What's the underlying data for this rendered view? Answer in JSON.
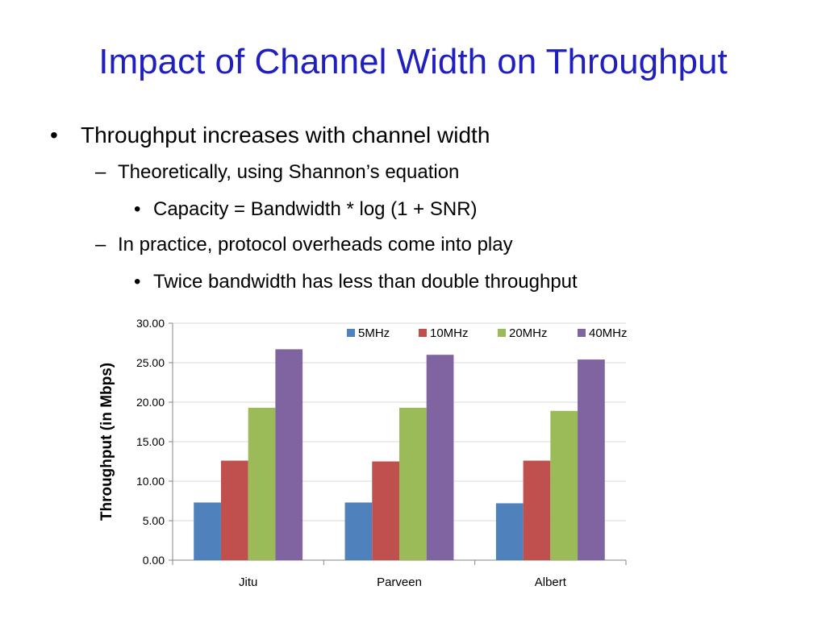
{
  "slide": {
    "title": "Impact of Channel Width on Throughput",
    "bullets": [
      {
        "level": 1,
        "marker": "•",
        "text": "Throughput increases with channel width"
      },
      {
        "level": 2,
        "marker": "–",
        "text": "Theoretically, using Shannon’s equation"
      },
      {
        "level": 3,
        "marker": "•",
        "text": "Capacity = Bandwidth * log (1 + SNR)"
      },
      {
        "level": 2,
        "marker": "–",
        "text": "In practice, protocol overheads come into play"
      },
      {
        "level": 3,
        "marker": "•",
        "text": "Twice bandwidth has less than double throughput"
      }
    ]
  },
  "colors": {
    "title": "#1f1fbf",
    "axis": "#868686",
    "grid": "#d9d9d9"
  },
  "chart_data": {
    "type": "bar",
    "title": "",
    "xlabel": "",
    "ylabel": "Throughput (in Mbps)",
    "ylim": [
      0,
      30
    ],
    "yticks": [
      0,
      5,
      10,
      15,
      20,
      25,
      30
    ],
    "ytick_labels": [
      "0.00",
      "5.00",
      "10.00",
      "15.00",
      "20.00",
      "25.00",
      "30.00"
    ],
    "categories": [
      "Jitu",
      "Parveen",
      "Albert"
    ],
    "series": [
      {
        "name": "5MHz",
        "color": "#4f81bd",
        "values": [
          7.3,
          7.3,
          7.2
        ]
      },
      {
        "name": "10MHz",
        "color": "#c0504d",
        "values": [
          12.6,
          12.5,
          12.6
        ]
      },
      {
        "name": "20MHz",
        "color": "#9bbb59",
        "values": [
          19.3,
          19.3,
          18.9
        ]
      },
      {
        "name": "40MHz",
        "color": "#8064a2",
        "values": [
          26.7,
          26.0,
          25.4
        ]
      }
    ],
    "grid": true,
    "legend": "top-right"
  }
}
